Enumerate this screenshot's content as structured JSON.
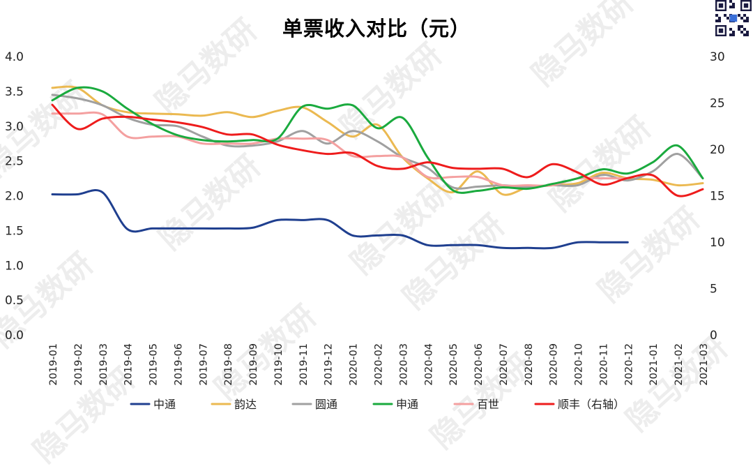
{
  "chart_data": {
    "type": "line",
    "title": "单票收入对比（元）",
    "watermark": "隐马数研",
    "categories": [
      "2019-01",
      "2019-02",
      "2019-03",
      "2019-04",
      "2019-05",
      "2019-06",
      "2019-07",
      "2019-08",
      "2019-09",
      "2019-10",
      "2019-11",
      "2019-12",
      "2020-01",
      "2020-02",
      "2020-03",
      "2020-04",
      "2020-05",
      "2020-06",
      "2020-07",
      "2020-08",
      "2020-09",
      "2020-10",
      "2020-11",
      "2020-12",
      "2021-01",
      "2021-02",
      "2021-03"
    ],
    "left_axis": {
      "min": 0,
      "max": 4.0,
      "ticks": [
        "0.0",
        "0.5",
        "1.0",
        "1.5",
        "2.0",
        "2.5",
        "3.0",
        "3.5",
        "4.0"
      ]
    },
    "right_axis": {
      "min": 0,
      "max": 30,
      "ticks": [
        "0",
        "5",
        "10",
        "15",
        "20",
        "25",
        "30"
      ]
    },
    "grid": false,
    "legend_position": "bottom",
    "series": [
      {
        "name": "中通",
        "axis": "left",
        "color": "#1f3f8f",
        "values": [
          2.02,
          2.02,
          2.05,
          1.52,
          1.53,
          1.53,
          1.53,
          1.53,
          1.54,
          1.65,
          1.65,
          1.65,
          1.43,
          1.43,
          1.43,
          1.29,
          1.29,
          1.29,
          1.25,
          1.25,
          1.25,
          1.33,
          1.33,
          1.33,
          null,
          null,
          null
        ]
      },
      {
        "name": "韵达",
        "axis": "left",
        "color": "#ebb951",
        "values": [
          3.55,
          3.55,
          3.3,
          3.2,
          3.18,
          3.17,
          3.15,
          3.2,
          3.13,
          3.22,
          3.27,
          3.06,
          2.85,
          3.02,
          2.55,
          2.25,
          2.05,
          2.35,
          2.02,
          2.12,
          2.15,
          2.18,
          2.33,
          2.25,
          2.23,
          2.15,
          2.18
        ]
      },
      {
        "name": "圆通",
        "axis": "left",
        "color": "#a0a0a0",
        "values": [
          3.45,
          3.4,
          3.3,
          3.12,
          3.02,
          3.0,
          2.85,
          2.72,
          2.72,
          2.78,
          2.93,
          2.75,
          2.93,
          2.78,
          2.55,
          2.4,
          2.12,
          2.13,
          2.15,
          2.12,
          2.15,
          2.15,
          2.3,
          2.22,
          2.35,
          2.6,
          2.25
        ]
      },
      {
        "name": "申通",
        "axis": "left",
        "color": "#1aaa3e",
        "values": [
          3.37,
          3.55,
          3.5,
          3.25,
          3.03,
          2.87,
          2.8,
          2.78,
          2.8,
          2.82,
          3.28,
          3.25,
          3.3,
          2.97,
          3.12,
          2.55,
          2.08,
          2.07,
          2.12,
          2.1,
          2.17,
          2.25,
          2.38,
          2.32,
          2.48,
          2.72,
          2.25
        ]
      },
      {
        "name": "百世",
        "axis": "left",
        "color": "#f4a0a0",
        "values": [
          3.18,
          3.18,
          3.17,
          2.85,
          2.85,
          2.85,
          2.75,
          2.75,
          2.75,
          2.82,
          2.82,
          2.8,
          2.57,
          2.57,
          2.55,
          2.27,
          2.27,
          2.27,
          2.15,
          2.15,
          2.15,
          2.25,
          2.25,
          2.25,
          null,
          null,
          null
        ]
      },
      {
        "name": "顺丰（右轴）",
        "axis": "right",
        "color": "#ee1c1c",
        "values": [
          24.8,
          22.2,
          23.3,
          23.5,
          23.2,
          22.9,
          22.4,
          21.6,
          21.6,
          20.5,
          19.9,
          19.5,
          19.6,
          18.2,
          17.9,
          18.6,
          18.0,
          17.9,
          17.9,
          17.0,
          18.4,
          17.5,
          16.2,
          16.9,
          17.2,
          15.0,
          15.7
        ]
      }
    ]
  }
}
